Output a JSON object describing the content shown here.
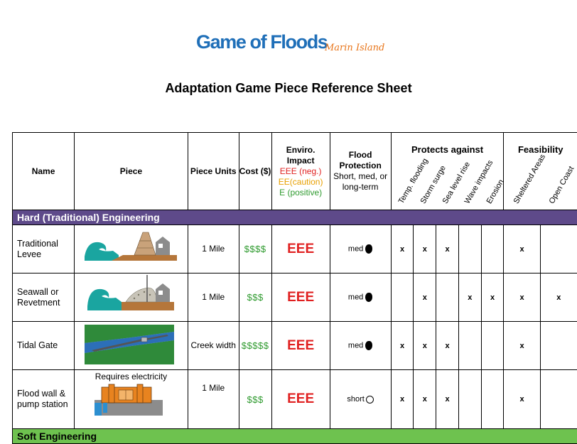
{
  "header": {
    "logo_main": "Game of Floods",
    "logo_sub": "Marin Island",
    "title": "Adaptation Game Piece Reference Sheet"
  },
  "columns": {
    "name": "Name",
    "piece": "Piece",
    "units": "Piece Units",
    "cost": "Cost ($)",
    "enviro_title": "Enviro. Impact",
    "enviro_neg": "EEE (neg.)",
    "enviro_caution": "EE(caution)",
    "enviro_pos": "E (positive)",
    "flood_title": "Flood Protection",
    "flood_desc": "Short, med, or long-term",
    "protects_title": "Protects against",
    "protects": [
      "Temp. flooding",
      "Storm surge",
      "Sea level rise",
      "Wave impacts",
      "Erosion"
    ],
    "feasibility_title": "Feasibility",
    "feasibility": [
      "Sheltered Areas",
      "Open Coast"
    ]
  },
  "colors": {
    "neg": "#e02020",
    "caution": "#e8a000",
    "pos": "#2e9a2e",
    "hard_band": "#5e4a8a",
    "soft_band": "#6ec24f"
  },
  "sections": [
    {
      "title": "Hard (Traditional) Engineering",
      "rows": [
        {
          "name": "Traditional Levee",
          "units": "1 Mile",
          "cost": "$$$$",
          "enviro": "EEE",
          "protection": "med",
          "marks": [
            "x",
            "x",
            "x",
            "",
            ""
          ],
          "feas": [
            "x",
            ""
          ]
        },
        {
          "name": "Seawall or Revetment",
          "units": "1 Mile",
          "cost": "$$$",
          "enviro": "EEE",
          "protection": "med",
          "marks": [
            "",
            "x",
            "",
            "x",
            "x"
          ],
          "feas": [
            "x",
            "x"
          ]
        },
        {
          "name": "Tidal Gate",
          "units": "Creek width",
          "cost": "$$$$$",
          "enviro": "EEE",
          "protection": "med",
          "marks": [
            "x",
            "x",
            "x",
            "",
            ""
          ],
          "feas": [
            "x",
            ""
          ]
        },
        {
          "name": "Flood wall & pump station",
          "units": "1 Mile",
          "cost": "$$$",
          "enviro": "EEE",
          "protection": "short",
          "note": "Requires electricity",
          "marks": [
            "x",
            "x",
            "x",
            "",
            ""
          ],
          "feas": [
            "x",
            ""
          ]
        }
      ]
    },
    {
      "title": "Soft Engineering",
      "rows": []
    }
  ]
}
